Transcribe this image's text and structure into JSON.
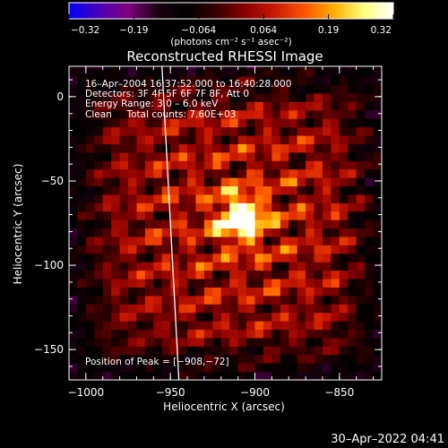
{
  "chart_data": {
    "type": "heatmap",
    "title": "Reconstructed RHESSI Image",
    "xlabel": "Heliocentric X (arcsec)",
    "ylabel": "Heliocentric Y (arcsec)",
    "xlim": [
      -1010,
      -825
    ],
    "ylim": [
      -168,
      18
    ],
    "xticks": [
      -1000,
      -950,
      -900,
      -850
    ],
    "xtick_labels": [
      "−1000",
      "−950",
      "−900",
      "−850"
    ],
    "yticks": [
      0,
      -50,
      -100,
      -150
    ],
    "ytick_labels": [
      "0",
      "−50",
      "−100",
      "−150"
    ],
    "colorbar": {
      "range": [
        -0.32,
        0.32
      ],
      "tick_labels": [
        "−0.32",
        "−0.19",
        "−0.064",
        "0.064",
        "0.19",
        "0.32"
      ],
      "unit_label": "(photons cm⁻² s⁻¹ asec⁻²)",
      "colors": [
        "#0000ff",
        "#4a00b8",
        "#800080",
        "#1a0010",
        "#000000",
        "#3a0000",
        "#8a0000",
        "#cc1a00",
        "#ff5500",
        "#ffb000",
        "#ffff80",
        "#ffffff"
      ]
    },
    "annotations": [
      "16–Apr–2004 16:37:52.000 to 16:40:28.000",
      "Detectors: 3F 4F 5F 6F 7F 8F, Att 0",
      "Energy Range: 3.0 – 6.0 keV",
      "Clean     Total counts: 7.60E+03"
    ],
    "peak_label": "Position of Peak = [−908,−72]",
    "peak": {
      "x": -908,
      "y": -72
    },
    "limb_line": [
      {
        "x": -955,
        "y": 18
      },
      {
        "x": -945,
        "y": -168
      }
    ]
  },
  "footer": {
    "timestamp": "30–Apr–2022 04:41"
  }
}
